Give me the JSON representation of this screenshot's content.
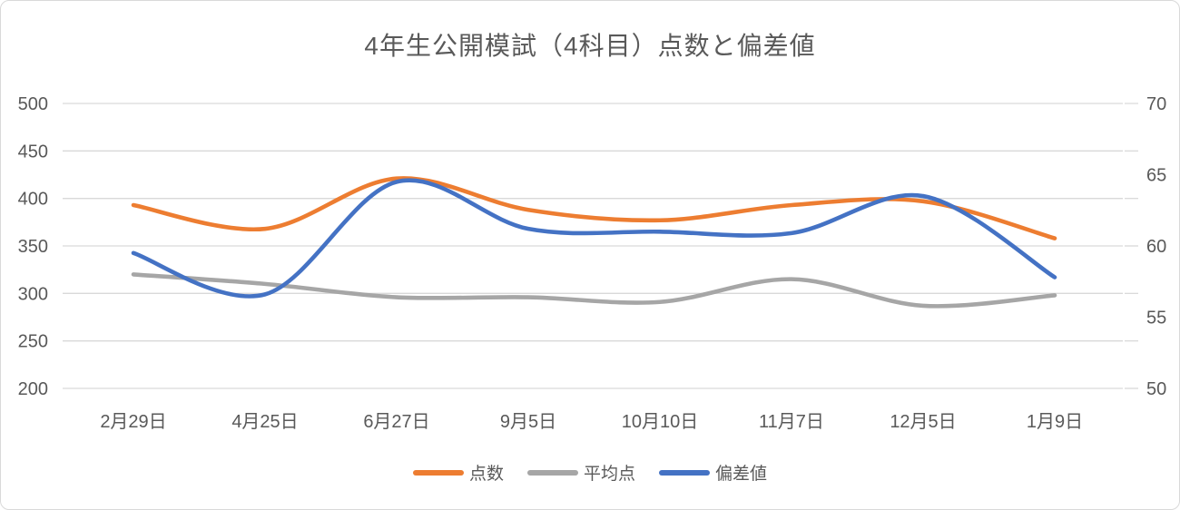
{
  "title": "4年生公開模試（4科目）点数と偏差値",
  "chart_data": {
    "type": "line",
    "smooth": true,
    "title": "4年生公開模試（4科目）点数と偏差値",
    "categories": [
      "2月29日",
      "4月25日",
      "6月27日",
      "9月5日",
      "10月10日",
      "11月7日",
      "12月5日",
      "1月9日"
    ],
    "series": [
      {
        "key": "scores",
        "name": "点数",
        "axis": "left",
        "color": "#ED7D31",
        "values": [
          393,
          368,
          421,
          388,
          377,
          393,
          397,
          358
        ]
      },
      {
        "key": "average",
        "name": "平均点",
        "axis": "left",
        "color": "#A6A6A6",
        "values": [
          320,
          310,
          296,
          296,
          291,
          315,
          287,
          298
        ]
      },
      {
        "key": "deviation",
        "name": "偏差値",
        "axis": "right",
        "color": "#4472C4",
        "values": [
          59.5,
          56.6,
          64.5,
          61.2,
          61,
          60.9,
          63.5,
          57.8
        ]
      }
    ],
    "left_axis": {
      "min": 200,
      "max": 500,
      "step": 50,
      "tick_labels": [
        "500",
        "450",
        "400",
        "350",
        "300",
        "250",
        "200"
      ]
    },
    "right_axis": {
      "min": 50,
      "max": 70,
      "step": 5,
      "tick_labels": [
        "70",
        "65",
        "60",
        "55",
        "50"
      ]
    },
    "grid": true,
    "legend_position": "bottom",
    "colors": {
      "grid": "#D9D9D9",
      "text": "#595959",
      "background": "#FFFFFF",
      "border": "#D9D9D9"
    }
  }
}
